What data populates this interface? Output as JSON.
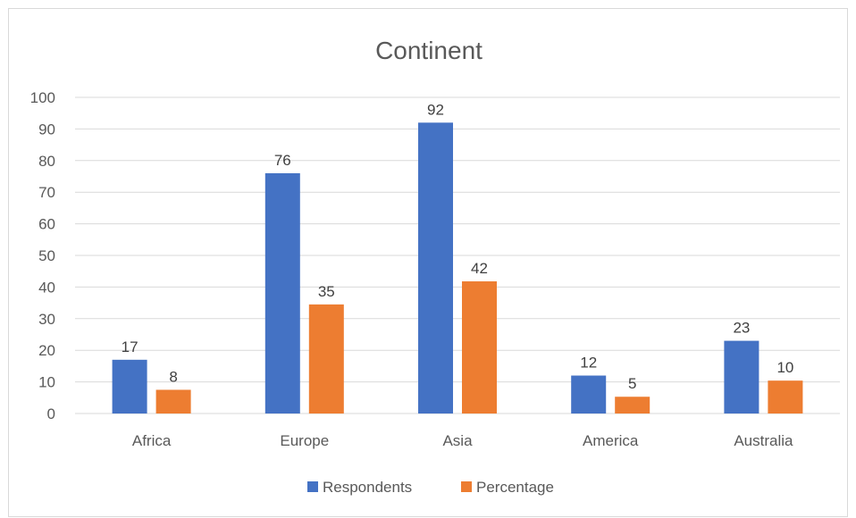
{
  "chart_data": {
    "type": "bar",
    "title": "Continent",
    "categories": [
      "Africa",
      "Europe",
      "Asia",
      "America",
      "Australia"
    ],
    "series": [
      {
        "name": "Respondents",
        "values": [
          17,
          76,
          92,
          12,
          23
        ],
        "labels": [
          "17",
          "76",
          "92",
          "12",
          "23"
        ],
        "color": "#4472C4"
      },
      {
        "name": "Percentage",
        "values": [
          7.5,
          34.5,
          41.8,
          5.3,
          10.4
        ],
        "labels": [
          "8",
          "35",
          "42",
          "5",
          "10"
        ],
        "color": "#ED7D31"
      }
    ],
    "ylim": [
      0,
      100
    ],
    "yticks": [
      "0",
      "10",
      "20",
      "30",
      "40",
      "50",
      "60",
      "70",
      "80",
      "90",
      "100"
    ],
    "grid": true,
    "legend_position": "bottom"
  }
}
